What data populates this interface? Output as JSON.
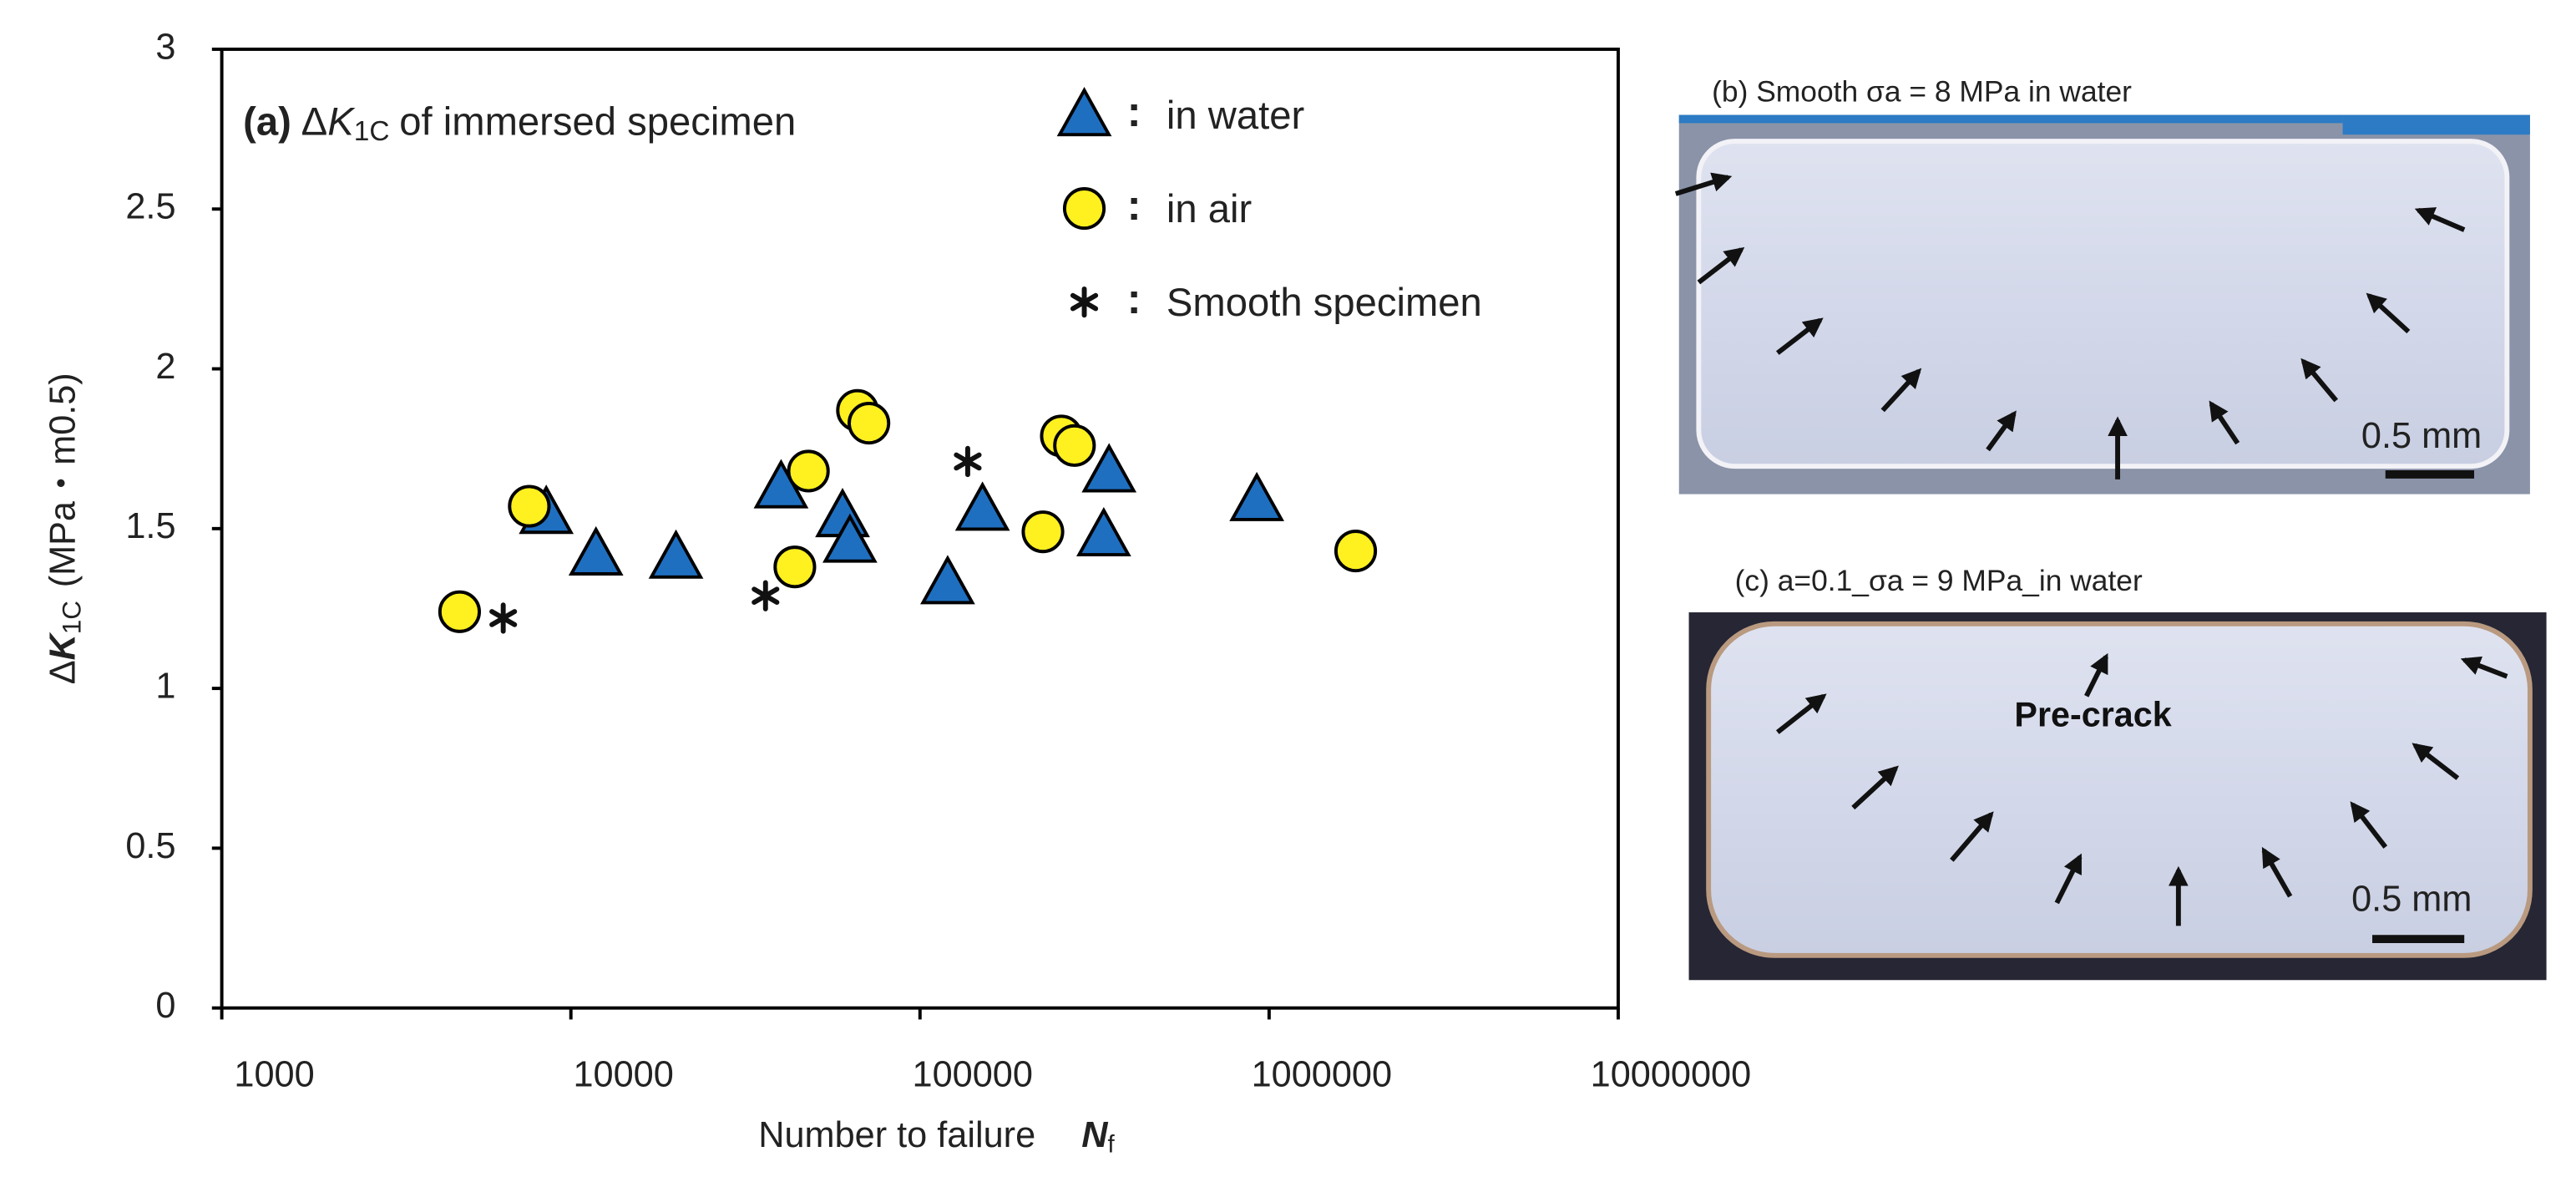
{
  "chart_data": {
    "type": "scatter",
    "title": [
      "(a)",
      "Δ",
      "K",
      "1C",
      "of immersed specimen"
    ],
    "y_label": [
      "Δ",
      "K",
      "1C",
      "(MPa・m0.5)"
    ],
    "x_label": [
      "Number to failure",
      "N",
      "f"
    ],
    "xscale": "log",
    "xlim": [
      1000,
      10000000
    ],
    "xticks": [
      1000,
      10000,
      100000,
      1000000,
      10000000
    ],
    "ylim": [
      0,
      3
    ],
    "yticks": [
      0,
      0.5,
      1,
      1.5,
      2,
      2.5,
      3
    ],
    "grid": false,
    "legend_separator": ":",
    "series": [
      {
        "name": "in water",
        "marker": "triangle",
        "color": "#1f6fc0",
        "x": [
          8500,
          11800,
          20000,
          40000,
          60000,
          63000,
          120000,
          151000,
          348000,
          336000,
          922000
        ],
        "values": [
          1.55,
          1.42,
          1.41,
          1.63,
          1.54,
          1.46,
          1.33,
          1.56,
          1.68,
          1.48,
          1.59
        ]
      },
      {
        "name": "in air",
        "marker": "circle",
        "color": "#fff01f",
        "x": [
          4800,
          7600,
          43800,
          47900,
          66200,
          71400,
          225000,
          254000,
          277000,
          1770000
        ],
        "values": [
          1.24,
          1.57,
          1.38,
          1.68,
          1.87,
          1.83,
          1.49,
          1.79,
          1.76,
          1.43
        ]
      },
      {
        "name": "Smooth specimen",
        "marker": "asterisk",
        "color": "#111111",
        "x": [
          6400,
          36100,
          137000
        ],
        "values": [
          1.22,
          1.29,
          1.71
        ]
      }
    ]
  },
  "panels": [
    {
      "caption": "(b) Smooth σa = 8 MPa in water",
      "scale_label": "0.5 mm"
    },
    {
      "caption": "(c) a=0.1_σa = 9 MPa_in water",
      "scale_label": "0.5 mm",
      "annotation": "Pre-crack"
    }
  ]
}
